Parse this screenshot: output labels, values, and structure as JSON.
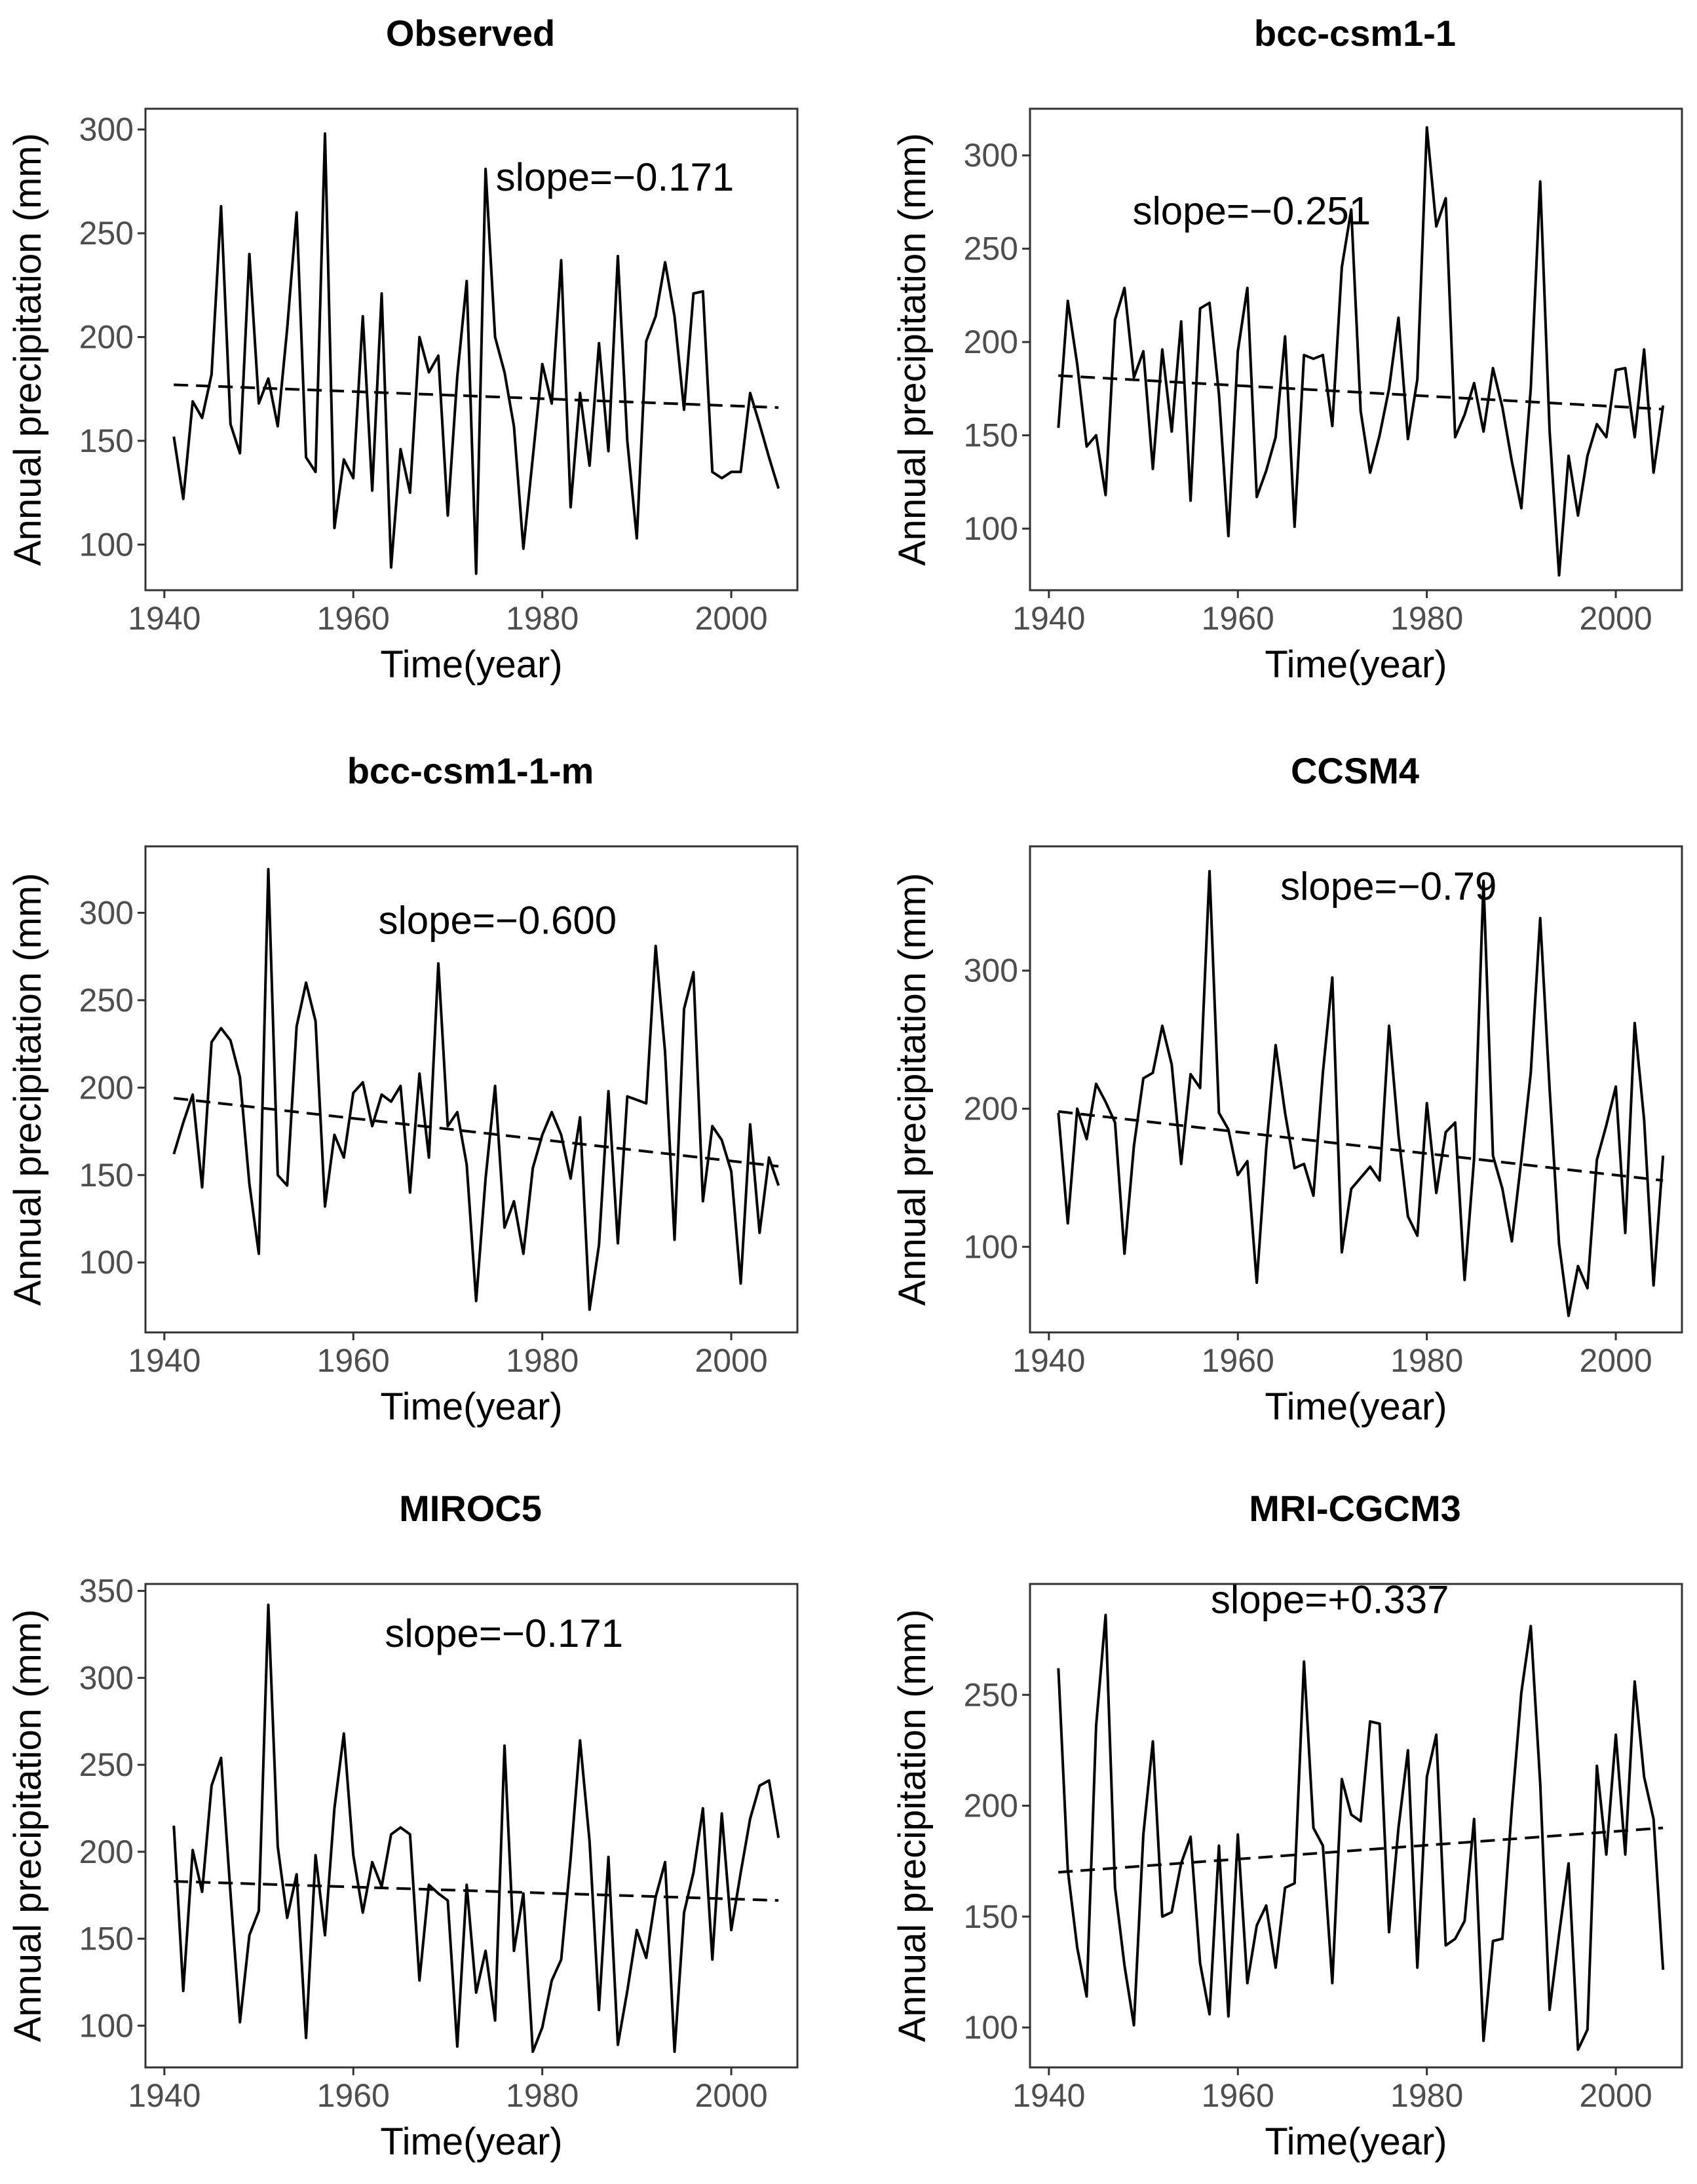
{
  "chart_data": [
    {
      "type": "line",
      "title": "Observed",
      "xlabel": "Time(year)",
      "ylabel": "Annual precipitation (mm)",
      "xlim": [
        1938,
        2007
      ],
      "ylim": [
        78,
        310
      ],
      "xticks": [
        1940,
        1960,
        1980,
        2000
      ],
      "yticks": [
        100,
        150,
        200,
        250,
        300
      ],
      "slope_label": "slope=−0.171",
      "trend": {
        "start": [
          1941,
          177
        ],
        "end": [
          2005,
          166
        ]
      },
      "series": [
        {
          "name": "Observed",
          "x": [
            1941,
            1942,
            1943,
            1944,
            1945,
            1946,
            1947,
            1948,
            1949,
            1950,
            1951,
            1952,
            1953,
            1954,
            1955,
            1956,
            1957,
            1958,
            1959,
            1960,
            1961,
            1962,
            1963,
            1964,
            1965,
            1966,
            1967,
            1968,
            1969,
            1970,
            1971,
            1972,
            1973,
            1974,
            1975,
            1976,
            1977,
            1978,
            1979,
            1980,
            1981,
            1982,
            1983,
            1984,
            1985,
            1986,
            1987,
            1988,
            1989,
            1990,
            1991,
            1992,
            1993,
            1994,
            1995,
            1996,
            1997,
            1998,
            1999,
            2000,
            2001,
            2002,
            2003,
            2004,
            2005
          ],
          "values": [
            152,
            122,
            169,
            161,
            182,
            263,
            158,
            144,
            240,
            168,
            180,
            157,
            204,
            260,
            142,
            135,
            298,
            108,
            141,
            132,
            210,
            126,
            221,
            89,
            146,
            125,
            200,
            183,
            191,
            114,
            181,
            227,
            86,
            281,
            200,
            183,
            157,
            98,
            142,
            187,
            168,
            237,
            118,
            173,
            138,
            197,
            145,
            239,
            150,
            103,
            198,
            210,
            236,
            210,
            165,
            221,
            222,
            135,
            132,
            135,
            135,
            173,
            158,
            142,
            127
          ]
        }
      ]
    },
    {
      "type": "line",
      "title": "bcc-csm1-1",
      "xlabel": "Time(year)",
      "ylabel": "Annual precipitation (mm)",
      "xlim": [
        1938,
        2007
      ],
      "ylim": [
        67,
        325
      ],
      "xticks": [
        1940,
        1960,
        1980,
        2000
      ],
      "yticks": [
        100,
        150,
        200,
        250,
        300
      ],
      "slope_label": "slope=−0.251",
      "trend": {
        "start": [
          1941,
          182
        ],
        "end": [
          2005,
          164
        ]
      },
      "series": [
        {
          "name": "bcc-csm1-1",
          "x": [
            1941,
            1942,
            1943,
            1944,
            1945,
            1946,
            1947,
            1948,
            1949,
            1950,
            1951,
            1952,
            1953,
            1954,
            1955,
            1956,
            1957,
            1958,
            1959,
            1960,
            1961,
            1962,
            1963,
            1964,
            1965,
            1966,
            1967,
            1968,
            1969,
            1970,
            1971,
            1972,
            1973,
            1974,
            1975,
            1976,
            1977,
            1978,
            1979,
            1980,
            1981,
            1982,
            1983,
            1984,
            1985,
            1986,
            1987,
            1988,
            1989,
            1990,
            1991,
            1992,
            1993,
            1994,
            1995,
            1996,
            1997,
            1998,
            1999,
            2000,
            2001,
            2002,
            2003,
            2004,
            2005
          ],
          "values": [
            154,
            222,
            188,
            144,
            150,
            118,
            212,
            229,
            181,
            195,
            132,
            196,
            152,
            211,
            115,
            218,
            221,
            172,
            96,
            195,
            229,
            117,
            131,
            149,
            203,
            101,
            193,
            191,
            193,
            155,
            240,
            271,
            163,
            130,
            150,
            175,
            213,
            148,
            180,
            315,
            262,
            277,
            149,
            161,
            178,
            152,
            186,
            165,
            136,
            111,
            175,
            286,
            152,
            75,
            139,
            107,
            139,
            156,
            149,
            185,
            186,
            149,
            196,
            130,
            166
          ]
        }
      ]
    },
    {
      "type": "line",
      "title": "bcc-csm1-1-m",
      "xlabel": "Time(year)",
      "ylabel": "Annual precipitation (mm)",
      "xlim": [
        1938,
        2007
      ],
      "ylim": [
        60,
        338
      ],
      "xticks": [
        1940,
        1960,
        1980,
        2000
      ],
      "yticks": [
        100,
        150,
        200,
        250,
        300
      ],
      "slope_label": "slope=−0.600",
      "trend": {
        "start": [
          1941,
          194
        ],
        "end": [
          2005,
          155
        ]
      },
      "series": [
        {
          "name": "bcc-csm1-1-m",
          "x": [
            1941,
            1942,
            1943,
            1944,
            1945,
            1946,
            1947,
            1948,
            1949,
            1950,
            1951,
            1952,
            1953,
            1954,
            1955,
            1956,
            1957,
            1958,
            1959,
            1960,
            1961,
            1962,
            1963,
            1964,
            1965,
            1966,
            1967,
            1968,
            1969,
            1970,
            1971,
            1972,
            1973,
            1974,
            1975,
            1976,
            1977,
            1978,
            1979,
            1980,
            1981,
            1982,
            1983,
            1984,
            1985,
            1986,
            1987,
            1988,
            1989,
            1990,
            1991,
            1992,
            1993,
            1994,
            1995,
            1996,
            1997,
            1998,
            1999,
            2000,
            2001,
            2002,
            2003,
            2004,
            2005
          ],
          "values": [
            162,
            180,
            196,
            143,
            226,
            234,
            227,
            206,
            145,
            105,
            325,
            150,
            144,
            235,
            260,
            238,
            132,
            173,
            160,
            197,
            203,
            178,
            196,
            192,
            201,
            140,
            208,
            160,
            271,
            178,
            186,
            156,
            78,
            148,
            201,
            120,
            135,
            105,
            154,
            173,
            186,
            173,
            148,
            183,
            73,
            110,
            198,
            111,
            195,
            193,
            191,
            281,
            220,
            113,
            245,
            266,
            135,
            178,
            170,
            152,
            88,
            179,
            117,
            160,
            144
          ]
        }
      ]
    },
    {
      "type": "line",
      "title": "CCSM4",
      "xlabel": "Time(year)",
      "ylabel": "Annual precipitation (mm)",
      "xlim": [
        1938,
        2007
      ],
      "ylim": [
        38,
        390
      ],
      "xticks": [
        1940,
        1960,
        1980,
        2000
      ],
      "yticks": [
        100,
        200,
        300
      ],
      "slope_label": "slope=−0.79",
      "trend": {
        "start": [
          1941,
          198
        ],
        "end": [
          2005,
          148
        ]
      },
      "series": [
        {
          "name": "CCSM4",
          "x": [
            1941,
            1942,
            1943,
            1944,
            1945,
            1946,
            1947,
            1948,
            1949,
            1950,
            1951,
            1952,
            1953,
            1954,
            1955,
            1956,
            1957,
            1958,
            1959,
            1960,
            1961,
            1962,
            1963,
            1964,
            1965,
            1966,
            1967,
            1968,
            1969,
            1970,
            1971,
            1972,
            1973,
            1974,
            1975,
            1976,
            1977,
            1978,
            1979,
            1980,
            1981,
            1982,
            1983,
            1984,
            1985,
            1986,
            1987,
            1988,
            1989,
            1990,
            1991,
            1992,
            1993,
            1994,
            1995,
            1996,
            1997,
            1998,
            1999,
            2000,
            2001,
            2002,
            2003,
            2004,
            2005
          ],
          "values": [
            197,
            117,
            200,
            178,
            218,
            205,
            190,
            95,
            173,
            222,
            226,
            260,
            232,
            160,
            225,
            215,
            372,
            197,
            185,
            152,
            162,
            74,
            171,
            246,
            197,
            157,
            160,
            137,
            226,
            295,
            96,
            142,
            150,
            158,
            148,
            260,
            181,
            122,
            108,
            204,
            139,
            183,
            190,
            76,
            164,
            365,
            166,
            142,
            104,
            163,
            226,
            338,
            214,
            102,
            50,
            86,
            70,
            163,
            188,
            216,
            110,
            262,
            192,
            72,
            166
          ]
        }
      ]
    },
    {
      "type": "line",
      "title": "MIROC5",
      "xlabel": "Time(year)",
      "ylabel": "Annual precipitation (mm)",
      "xlim": [
        1938,
        2007
      ],
      "ylim": [
        76,
        354
      ],
      "xticks": [
        1940,
        1960,
        1980,
        2000
      ],
      "yticks": [
        100,
        150,
        200,
        250,
        300,
        350
      ],
      "slope_label": "slope=−0.171",
      "trend": {
        "start": [
          1941,
          183
        ],
        "end": [
          2005,
          172
        ]
      },
      "series": [
        {
          "name": "MIROC5",
          "x": [
            1941,
            1942,
            1943,
            1944,
            1945,
            1946,
            1947,
            1948,
            1949,
            1950,
            1951,
            1952,
            1953,
            1954,
            1955,
            1956,
            1957,
            1958,
            1959,
            1960,
            1961,
            1962,
            1963,
            1964,
            1965,
            1966,
            1967,
            1968,
            1969,
            1970,
            1971,
            1972,
            1973,
            1974,
            1975,
            1976,
            1977,
            1978,
            1979,
            1980,
            1981,
            1982,
            1983,
            1984,
            1985,
            1986,
            1987,
            1988,
            1989,
            1990,
            1991,
            1992,
            1993,
            1994,
            1995,
            1996,
            1997,
            1998,
            1999,
            2000,
            2001,
            2002,
            2003,
            2004,
            2005
          ],
          "values": [
            215,
            120,
            201,
            177,
            238,
            254,
            176,
            102,
            152,
            166,
            342,
            203,
            162,
            187,
            93,
            198,
            152,
            225,
            268,
            198,
            165,
            194,
            180,
            210,
            214,
            210,
            126,
            181,
            176,
            172,
            88,
            181,
            119,
            143,
            103,
            261,
            143,
            176,
            85,
            99,
            126,
            138,
            196,
            264,
            206,
            109,
            197,
            89,
            120,
            155,
            139,
            174,
            194,
            85,
            165,
            188,
            225,
            138,
            222,
            155,
            188,
            219,
            238,
            241,
            208
          ]
        }
      ]
    },
    {
      "type": "line",
      "title": "MRI-CGCM3",
      "xlabel": "Time(year)",
      "ylabel": "Annual precipitation (mm)",
      "xlim": [
        1938,
        2007
      ],
      "ylim": [
        82,
        300
      ],
      "xticks": [
        1940,
        1960,
        1980,
        2000
      ],
      "yticks": [
        100,
        150,
        200,
        250
      ],
      "slope_label": "slope=+0.337",
      "trend": {
        "start": [
          1941,
          170
        ],
        "end": [
          2005,
          190
        ]
      },
      "series": [
        {
          "name": "MRI-CGCM3",
          "x": [
            1941,
            1942,
            1943,
            1944,
            1945,
            1946,
            1947,
            1948,
            1949,
            1950,
            1951,
            1952,
            1953,
            1954,
            1955,
            1956,
            1957,
            1958,
            1959,
            1960,
            1961,
            1962,
            1963,
            1964,
            1965,
            1966,
            1967,
            1968,
            1969,
            1970,
            1971,
            1972,
            1973,
            1974,
            1975,
            1976,
            1977,
            1978,
            1979,
            1980,
            1981,
            1982,
            1983,
            1984,
            1985,
            1986,
            1987,
            1988,
            1989,
            1990,
            1991,
            1992,
            1993,
            1994,
            1995,
            1996,
            1997,
            1998,
            1999,
            2000,
            2001,
            2002,
            2003,
            2004,
            2005
          ],
          "values": [
            262,
            171,
            136,
            114,
            236,
            286,
            163,
            128,
            101,
            187,
            229,
            150,
            152,
            174,
            186,
            129,
            106,
            182,
            105,
            187,
            120,
            146,
            155,
            127,
            163,
            165,
            265,
            190,
            182,
            120,
            212,
            196,
            193,
            238,
            237,
            143,
            190,
            225,
            127,
            213,
            232,
            137,
            140,
            148,
            194,
            94,
            139,
            140,
            199,
            251,
            281,
            210,
            108,
            142,
            174,
            90,
            99,
            218,
            178,
            232,
            178,
            256,
            213,
            194,
            126
          ]
        }
      ]
    }
  ]
}
